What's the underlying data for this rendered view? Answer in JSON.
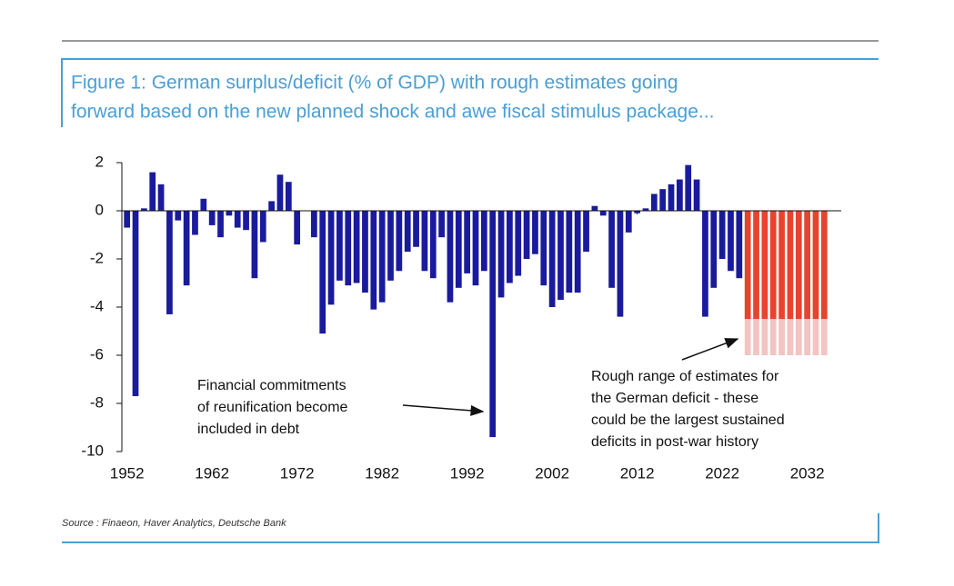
{
  "chart_data": {
    "type": "bar",
    "title": [
      "Figure 1: German surplus/deficit (% of GDP) with rough estimates going",
      "forward based on the new planned shock and awe fiscal stimulus package..."
    ],
    "source": "Source : Finaeon, Haver Analytics, Deutsche Bank",
    "annotations": [
      {
        "lines": [
          "Financial commitments",
          "of reunification become",
          "included in debt"
        ]
      },
      {
        "lines": [
          "Rough range of estimates for",
          "the German deficit - these",
          "could be the largest sustained",
          "deficits in post-war history"
        ]
      }
    ],
    "x": [
      1952,
      1953,
      1954,
      1955,
      1956,
      1957,
      1958,
      1959,
      1960,
      1961,
      1962,
      1963,
      1964,
      1965,
      1966,
      1967,
      1968,
      1969,
      1970,
      1971,
      1972,
      1973,
      1974,
      1975,
      1976,
      1977,
      1978,
      1979,
      1980,
      1981,
      1982,
      1983,
      1984,
      1985,
      1986,
      1987,
      1988,
      1989,
      1990,
      1991,
      1992,
      1993,
      1994,
      1995,
      1996,
      1997,
      1998,
      1999,
      2000,
      2001,
      2002,
      2003,
      2004,
      2005,
      2006,
      2007,
      2008,
      2009,
      2010,
      2011,
      2012,
      2013,
      2014,
      2015,
      2016,
      2017,
      2018,
      2019,
      2020,
      2021,
      2022,
      2023,
      2024,
      2025,
      2026,
      2027,
      2028,
      2029,
      2030,
      2031,
      2032,
      2033,
      2034
    ],
    "stacked": true,
    "series": [
      {
        "color": "#1a1a9c",
        "values": [
          -0.7,
          -7.7,
          0.1,
          1.6,
          1.1,
          -4.3,
          -0.4,
          -3.1,
          -1.0,
          0.5,
          -0.6,
          -1.1,
          -0.2,
          -0.7,
          -0.8,
          -2.8,
          -1.3,
          0.4,
          1.5,
          1.2,
          -1.4,
          0.0,
          -1.1,
          -5.1,
          -3.9,
          -2.9,
          -3.1,
          -3.0,
          -3.4,
          -4.1,
          -3.8,
          -2.9,
          -2.5,
          -1.7,
          -1.5,
          -2.5,
          -2.8,
          -1.1,
          -3.8,
          -3.2,
          -2.6,
          -3.1,
          -2.5,
          -9.4,
          -3.6,
          -3.0,
          -2.7,
          -2.0,
          -1.8,
          -3.1,
          -4.0,
          -3.7,
          -3.4,
          -3.4,
          -1.7,
          0.2,
          -0.2,
          -3.2,
          -4.4,
          -0.9,
          -0.1,
          0.1,
          0.7,
          0.9,
          1.1,
          1.3,
          1.9,
          1.3,
          -4.4,
          -3.2,
          -2.0,
          -2.5,
          -2.8,
          null,
          null,
          null,
          null,
          null,
          null,
          null,
          null,
          null,
          null
        ]
      },
      {
        "color": "#e8432e",
        "values": [
          null,
          null,
          null,
          null,
          null,
          null,
          null,
          null,
          null,
          null,
          null,
          null,
          null,
          null,
          null,
          null,
          null,
          null,
          null,
          null,
          null,
          null,
          null,
          null,
          null,
          null,
          null,
          null,
          null,
          null,
          null,
          null,
          null,
          null,
          null,
          null,
          null,
          null,
          null,
          null,
          null,
          null,
          null,
          null,
          null,
          null,
          null,
          null,
          null,
          null,
          null,
          null,
          null,
          null,
          null,
          null,
          null,
          null,
          null,
          null,
          null,
          null,
          null,
          null,
          null,
          null,
          null,
          null,
          null,
          null,
          null,
          null,
          null,
          -4.5,
          -4.5,
          -4.5,
          -4.5,
          -4.5,
          -4.5,
          -4.5,
          -4.5,
          -4.5,
          -4.5
        ]
      },
      {
        "color": "#f2c4c2",
        "values": [
          null,
          null,
          null,
          null,
          null,
          null,
          null,
          null,
          null,
          null,
          null,
          null,
          null,
          null,
          null,
          null,
          null,
          null,
          null,
          null,
          null,
          null,
          null,
          null,
          null,
          null,
          null,
          null,
          null,
          null,
          null,
          null,
          null,
          null,
          null,
          null,
          null,
          null,
          null,
          null,
          null,
          null,
          null,
          null,
          null,
          null,
          null,
          null,
          null,
          null,
          null,
          null,
          null,
          null,
          null,
          null,
          null,
          null,
          null,
          null,
          null,
          null,
          null,
          null,
          null,
          null,
          null,
          null,
          null,
          null,
          null,
          null,
          null,
          -1.5,
          -1.5,
          -1.5,
          -1.5,
          -1.5,
          -1.5,
          -1.5,
          -1.5,
          -1.5,
          -1.5
        ]
      }
    ],
    "xlim": [
      1951.5,
      2034.5
    ],
    "xticks": [
      1952,
      1962,
      1972,
      1982,
      1992,
      2002,
      2012,
      2022,
      2032
    ],
    "ylim": [
      -10,
      2
    ],
    "yticks": [
      -10,
      -8,
      -6,
      -4,
      -2,
      0,
      2
    ]
  }
}
